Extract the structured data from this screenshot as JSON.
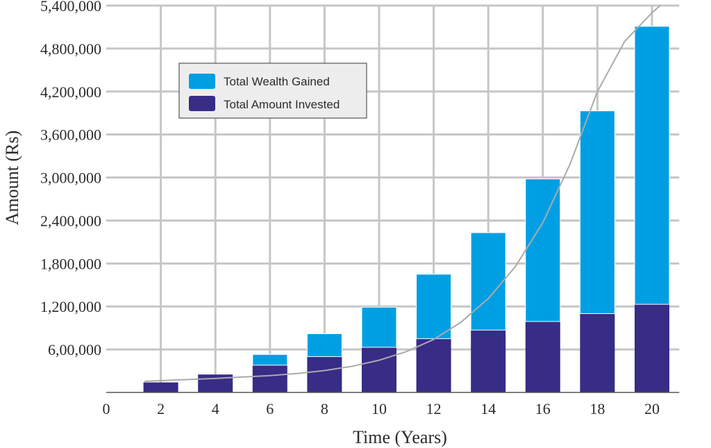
{
  "chart_data": {
    "type": "bar",
    "stacked": true,
    "xlabel": "Time (Years)",
    "ylabel": "Amount (Rs)",
    "x_ticks": [
      "0",
      "2",
      "4",
      "6",
      "8",
      "10",
      "12",
      "14",
      "16",
      "18",
      "20"
    ],
    "y_tick_labels": [
      "6,00,000",
      "1,200,000",
      "1,800,000",
      "2,400,000",
      "3,000,000",
      "3,600,000",
      "4,200,000",
      "4,800,000",
      "5,400,000"
    ],
    "y_tick_values": [
      600000,
      1200000,
      1800000,
      2400000,
      3000000,
      3600000,
      4200000,
      4800000,
      5400000
    ],
    "ylim": [
      0,
      5400000
    ],
    "xlim": [
      0,
      21
    ],
    "grid": true,
    "legend_position": "top-left",
    "categories": [
      2,
      4,
      6,
      8,
      10,
      12,
      14,
      16,
      18,
      20
    ],
    "series": [
      {
        "name": "Total Amount Invested",
        "color": "#372C86",
        "values": [
          140000,
          250000,
          380000,
          500000,
          630000,
          750000,
          870000,
          990000,
          1100000,
          1230000
        ]
      },
      {
        "name": "Total Wealth Gained",
        "color": "#009FE3",
        "values": [
          0,
          0,
          150000,
          320000,
          560000,
          900000,
          1360000,
          1990000,
          2830000,
          3880000
        ]
      }
    ],
    "trend_line": {
      "color": "#AAAAAA",
      "x": [
        1.4,
        2,
        3,
        4,
        5,
        6,
        7,
        8,
        9,
        10,
        11,
        12,
        13,
        14,
        15,
        16,
        17,
        18,
        19,
        20,
        20.3
      ],
      "y": [
        155000,
        165000,
        180000,
        195000,
        215000,
        235000,
        265000,
        305000,
        365000,
        450000,
        570000,
        740000,
        980000,
        1310000,
        1760000,
        2370000,
        3190000,
        4200000,
        4900000,
        5300000,
        5400000
      ]
    }
  }
}
